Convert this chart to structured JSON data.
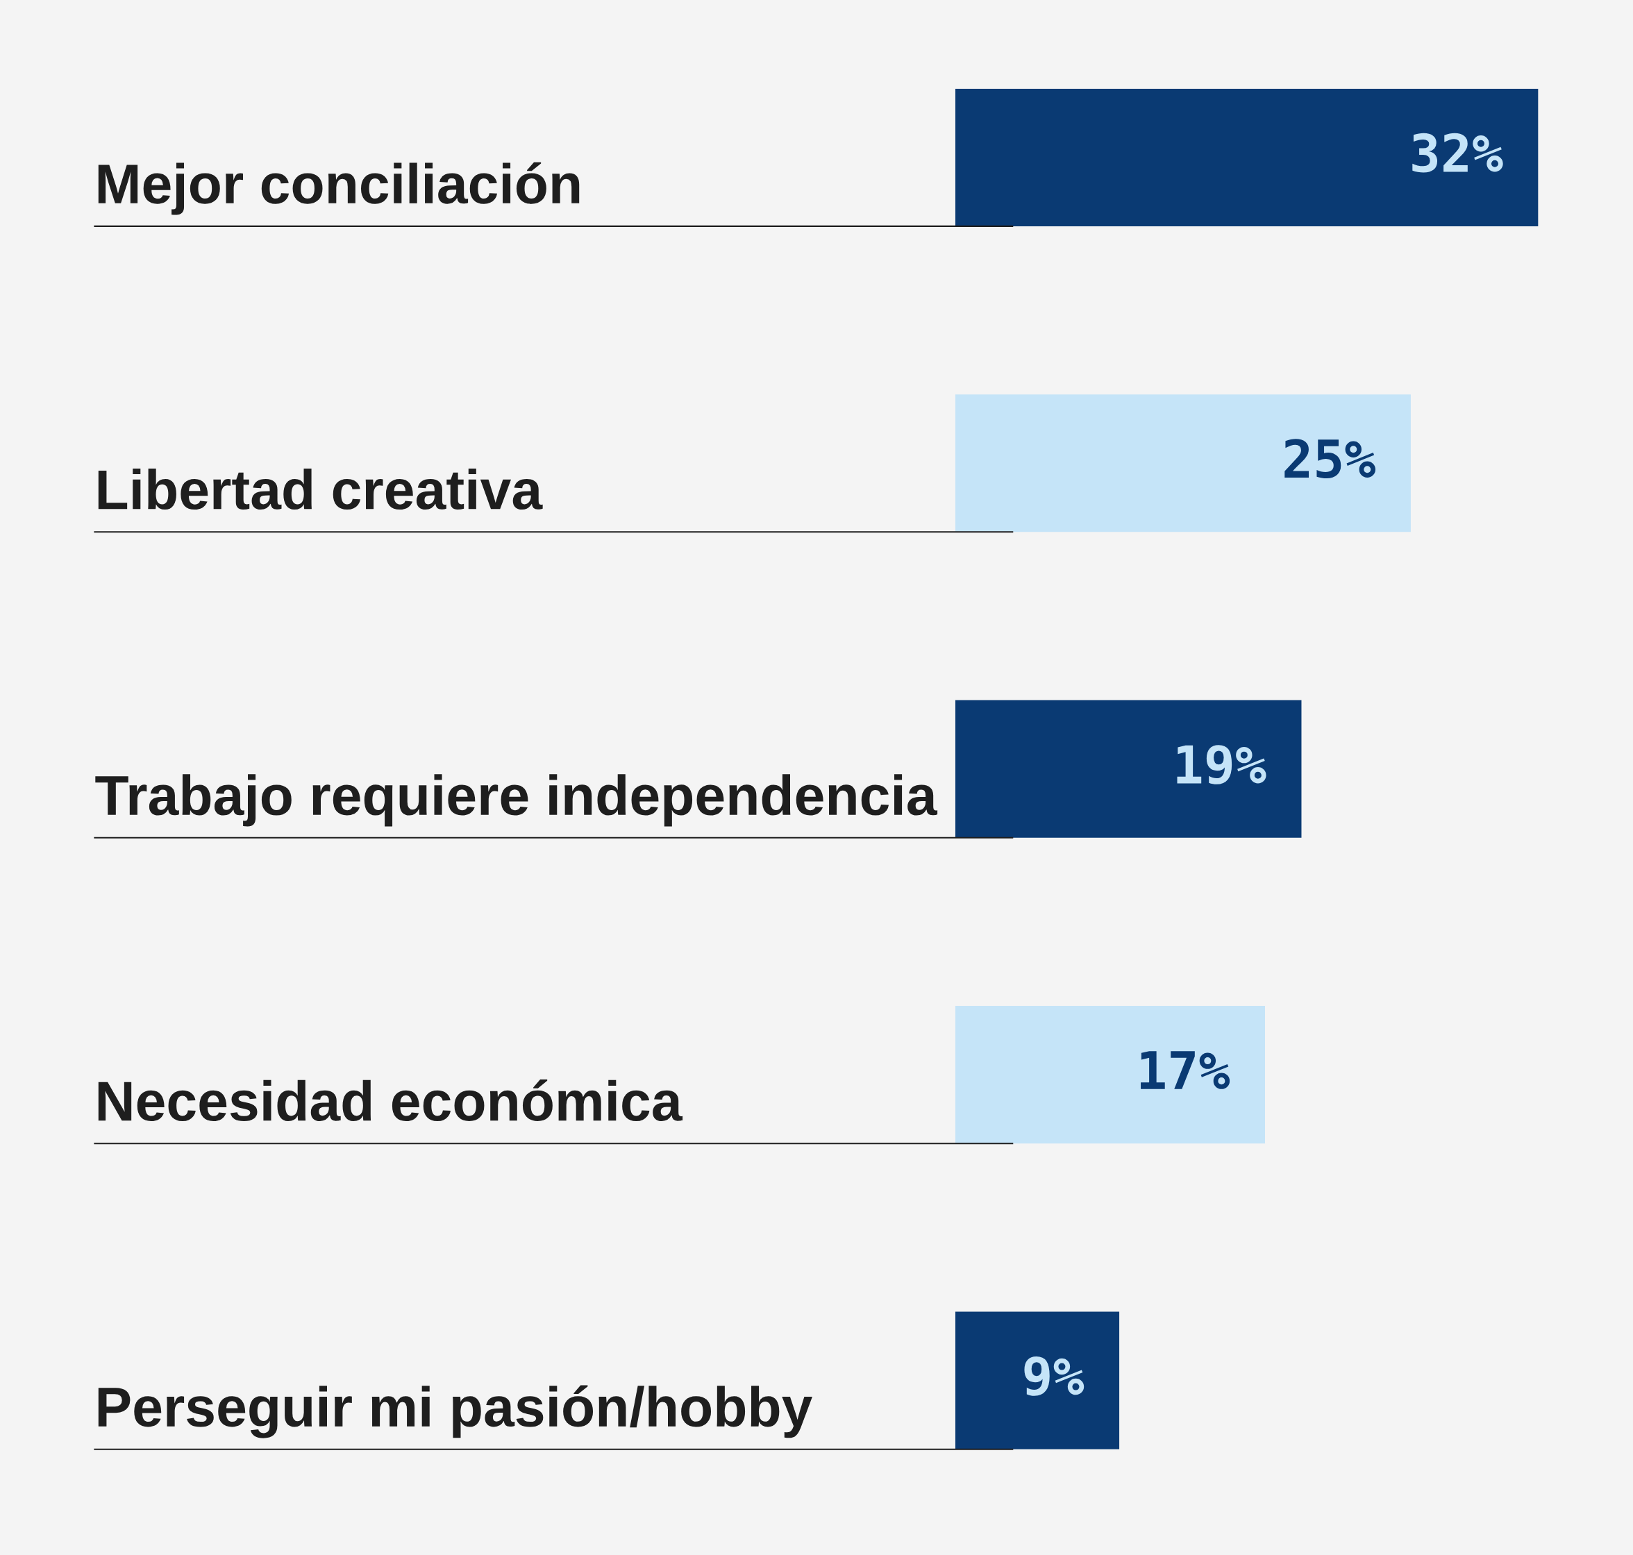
{
  "chart_data": {
    "type": "bar",
    "orientation": "horizontal",
    "categories": [
      "Mejor conciliación",
      "Libertad creativa",
      "Trabajo requiere independencia",
      "Necesidad económica",
      "Perseguir mi pasión/hobby"
    ],
    "values": [
      32,
      25,
      19,
      17,
      9
    ],
    "colors": [
      "#0a3a73",
      "#c5e4f8",
      "#0a3a73",
      "#c5e4f8",
      "#0a3a73"
    ],
    "value_labels": [
      "32%",
      "25%",
      "19%",
      "17%",
      "9%"
    ]
  }
}
